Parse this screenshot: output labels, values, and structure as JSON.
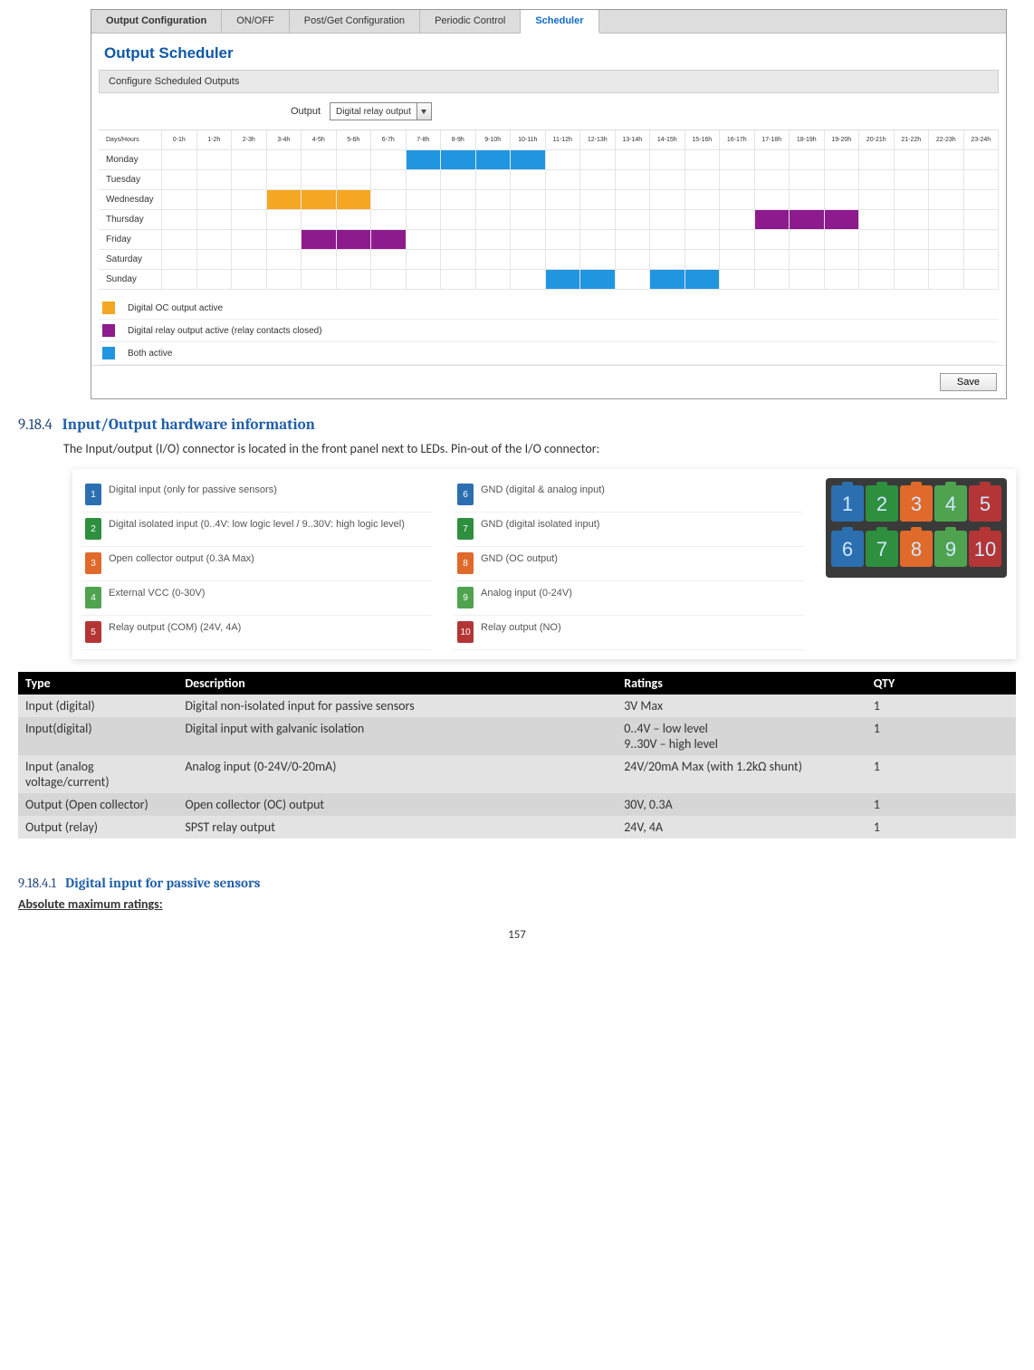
{
  "scheduler": {
    "tabs": [
      {
        "label": "Output Configuration",
        "bold": true
      },
      {
        "label": "ON/OFF"
      },
      {
        "label": "Post/Get Configuration"
      },
      {
        "label": "Periodic Control"
      },
      {
        "label": "Scheduler",
        "active": true
      }
    ],
    "title": "Output Scheduler",
    "subtitle": "Configure Scheduled Outputs",
    "output_label": "Output",
    "output_value": "Digital relay output",
    "row_header": "Days/Hours",
    "hours": [
      "0-1h",
      "1-2h",
      "2-3h",
      "3-4h",
      "4-5h",
      "5-6h",
      "6-7h",
      "7-8h",
      "8-9h",
      "9-10h",
      "10-11h",
      "11-12h",
      "12-13h",
      "13-14h",
      "14-15h",
      "15-16h",
      "16-17h",
      "17-18h",
      "18-19h",
      "19-20h",
      "20-21h",
      "21-22h",
      "22-23h",
      "23-24h"
    ],
    "days": [
      "Monday",
      "Tuesday",
      "Wednesday",
      "Thursday",
      "Friday",
      "Saturday",
      "Sunday"
    ],
    "cells": {
      "Monday": {
        "7": "blue",
        "8": "blue",
        "9": "blue",
        "10": "blue"
      },
      "Wednesday": {
        "3": "orange",
        "4": "orange",
        "5": "orange"
      },
      "Thursday": {
        "17": "purple",
        "18": "purple",
        "19": "purple"
      },
      "Friday": {
        "4": "purple",
        "5": "purple",
        "6": "purple"
      },
      "Sunday": {
        "11": "blue",
        "12": "blue",
        "14": "blue",
        "15": "blue"
      }
    },
    "legend": [
      {
        "color": "#f5a623",
        "label": "Digital OC output active"
      },
      {
        "color": "#8e1b8e",
        "label": "Digital relay output active (relay contacts closed)"
      },
      {
        "color": "#2196e0",
        "label": "Both active"
      }
    ],
    "save": "Save"
  },
  "section": {
    "num": "9.18.4",
    "title": "Input/Output hardware information",
    "body": "The Input/output (I/O) connector is located in the front panel next to LEDs. Pin-out of the I/O connector:"
  },
  "pins": {
    "left": [
      {
        "n": "1",
        "c": "#2b6fb0",
        "t": "Digital input (only for passive sensors)"
      },
      {
        "n": "2",
        "c": "#2e8f3e",
        "t": "Digital isolated input (0..4V: low logic level / 9..30V: high logic level)"
      },
      {
        "n": "3",
        "c": "#e06a2b",
        "t": "Open collector output (0.3A Max)"
      },
      {
        "n": "4",
        "c": "#4fa34f",
        "t": "External VCC (0-30V)"
      },
      {
        "n": "5",
        "c": "#b43535",
        "t": "Relay output (COM) (24V, 4A)"
      }
    ],
    "right": [
      {
        "n": "6",
        "c": "#2b6fb0",
        "t": "GND (digital & analog input)"
      },
      {
        "n": "7",
        "c": "#2e8f3e",
        "t": "GND (digital isolated input)"
      },
      {
        "n": "8",
        "c": "#e06a2b",
        "t": "GND (OC output)"
      },
      {
        "n": "9",
        "c": "#4fa34f",
        "t": "Analog input (0-24V)"
      },
      {
        "n": "10",
        "c": "#b43535",
        "t": "Relay output (NO)"
      }
    ],
    "connector_colors": [
      "#2b6fb0",
      "#2e8f3e",
      "#e06a2b",
      "#4fa34f",
      "#b43535",
      "#2b6fb0",
      "#2e8f3e",
      "#e06a2b",
      "#4fa34f",
      "#b43535"
    ]
  },
  "spec": {
    "headers": [
      "Type",
      "Description",
      "Ratings",
      "QTY"
    ],
    "rows": [
      [
        "Input (digital)",
        "Digital non-isolated input for passive sensors",
        "3V Max",
        "1"
      ],
      [
        "Input(digital)",
        "Digital input with galvanic  isolation",
        "0..4V – low level\n9..30V – high level",
        "1"
      ],
      [
        "Input (analog voltage/current)",
        "Analog input (0-24V/0-20mA)",
        "24V/20mA Max (with 1.2kΩ shunt)",
        "1"
      ],
      [
        "Output (Open collector)",
        "Open collector (OC) output",
        "30V, 0.3A",
        "1"
      ],
      [
        "Output (relay)",
        "SPST relay output",
        "24V, 4A",
        "1"
      ]
    ]
  },
  "subsection": {
    "num": "9.18.4.1",
    "title": "Digital input for passive sensors",
    "abs": "Absolute maximum ratings:"
  },
  "page_number": "157"
}
